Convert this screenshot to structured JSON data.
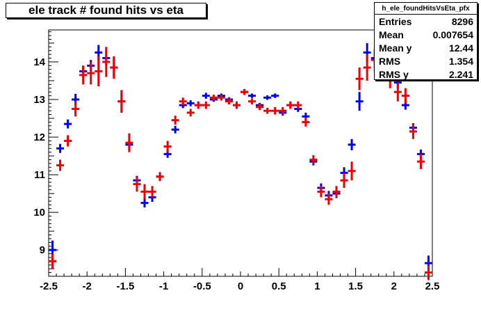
{
  "title": "ele track # found hits vs eta",
  "stats": {
    "name": "h_ele_foundHitsVsEta_pfx",
    "rows": [
      {
        "label": "Entries",
        "value": "8296"
      },
      {
        "label": "Mean",
        "value": "0.007654"
      },
      {
        "label": "Mean y",
        "value": "12.44"
      },
      {
        "label": "RMS",
        "value": "1.354"
      },
      {
        "label": "RMS y",
        "value": "2.241"
      }
    ]
  },
  "chart_data": {
    "type": "scatter",
    "title": "ele track # found hits vs eta",
    "xlabel": "",
    "ylabel": "",
    "xlim": [
      -2.5,
      2.5
    ],
    "ylim": [
      8.3,
      14.85
    ],
    "xticks": [
      -2.5,
      -2,
      -1.5,
      -1,
      -0.5,
      0,
      0.5,
      1,
      1.5,
      2,
      2.5
    ],
    "xtick_labels": [
      "-2.5",
      "-2",
      "-1.5",
      "-1",
      "-0.5",
      "0",
      "0.5",
      "1",
      "1.5",
      "2",
      "2.5"
    ],
    "yticks": [
      9,
      10,
      11,
      12,
      13,
      14
    ],
    "ytick_labels": [
      "9",
      "10",
      "11",
      "12",
      "13",
      "14"
    ],
    "grid": false,
    "colors": {
      "blue": "#0000ee",
      "red": "#ee0000"
    },
    "series": [
      {
        "color": "blue",
        "x": [
          -2.45,
          -2.35,
          -2.25,
          -2.15,
          -2.05,
          -1.95,
          -1.85,
          -1.75,
          -1.65,
          -1.55,
          -1.45,
          -1.35,
          -1.25,
          -1.15,
          -1.05,
          -0.95,
          -0.85,
          -0.75,
          -0.65,
          -0.55,
          -0.45,
          -0.35,
          -0.25,
          -0.15,
          -0.05,
          0.05,
          0.15,
          0.25,
          0.35,
          0.45,
          0.55,
          0.65,
          0.75,
          0.85,
          0.95,
          1.05,
          1.15,
          1.25,
          1.35,
          1.45,
          1.55,
          1.65,
          1.75,
          1.85,
          1.95,
          2.05,
          2.15,
          2.25,
          2.35,
          2.45
        ],
        "y": [
          9.0,
          11.7,
          12.35,
          13.0,
          13.75,
          13.9,
          14.25,
          14.1,
          13.85,
          12.95,
          11.8,
          10.85,
          10.25,
          10.4,
          10.95,
          11.55,
          12.2,
          12.85,
          12.9,
          12.85,
          13.1,
          13.0,
          13.1,
          13.0,
          12.85,
          13.2,
          13.1,
          12.85,
          13.05,
          13.1,
          12.65,
          12.85,
          12.75,
          12.55,
          11.35,
          10.65,
          10.45,
          10.5,
          11.05,
          11.8,
          12.95,
          14.25,
          14.1,
          14.1,
          13.75,
          13.45,
          12.85,
          12.25,
          11.55,
          8.65
        ],
        "yerr": [
          0.25,
          0.12,
          0.12,
          0.15,
          0.15,
          0.15,
          0.2,
          0.2,
          0.25,
          0.3,
          0.15,
          0.12,
          0.12,
          0.12,
          0.1,
          0.1,
          0.1,
          0.08,
          0.08,
          0.08,
          0.08,
          0.06,
          0.06,
          0.06,
          0.08,
          0.06,
          0.06,
          0.06,
          0.06,
          0.06,
          0.08,
          0.08,
          0.08,
          0.1,
          0.1,
          0.12,
          0.12,
          0.12,
          0.15,
          0.15,
          0.25,
          0.25,
          0.2,
          0.2,
          0.2,
          0.15,
          0.12,
          0.12,
          0.12,
          0.2
        ]
      },
      {
        "color": "red",
        "x": [
          -2.45,
          -2.35,
          -2.25,
          -2.15,
          -2.05,
          -1.95,
          -1.85,
          -1.75,
          -1.65,
          -1.55,
          -1.45,
          -1.35,
          -1.25,
          -1.15,
          -1.05,
          -0.95,
          -0.85,
          -0.75,
          -0.65,
          -0.55,
          -0.45,
          -0.35,
          -0.25,
          -0.15,
          -0.05,
          0.05,
          0.15,
          0.25,
          0.35,
          0.45,
          0.55,
          0.65,
          0.75,
          0.85,
          0.95,
          1.05,
          1.15,
          1.25,
          1.35,
          1.45,
          1.55,
          1.65,
          1.75,
          1.85,
          1.95,
          2.05,
          2.15,
          2.25,
          2.35,
          2.45
        ],
        "y": [
          8.7,
          11.25,
          11.9,
          12.75,
          13.65,
          13.7,
          13.75,
          14.0,
          13.85,
          12.95,
          11.85,
          10.75,
          10.55,
          10.55,
          10.95,
          11.75,
          12.45,
          12.95,
          12.65,
          12.85,
          12.85,
          13.05,
          13.05,
          12.95,
          12.85,
          13.2,
          12.95,
          12.8,
          12.7,
          12.7,
          12.7,
          12.85,
          12.85,
          12.4,
          11.4,
          10.55,
          10.35,
          10.55,
          10.85,
          11.1,
          13.55,
          13.85,
          14.05,
          13.85,
          13.55,
          13.2,
          13.1,
          12.15,
          11.35,
          8.4
        ],
        "yerr": [
          0.2,
          0.15,
          0.15,
          0.2,
          0.25,
          0.3,
          0.4,
          0.4,
          0.3,
          0.3,
          0.25,
          0.2,
          0.2,
          0.15,
          0.12,
          0.15,
          0.12,
          0.1,
          0.1,
          0.1,
          0.1,
          0.08,
          0.08,
          0.08,
          0.1,
          0.08,
          0.08,
          0.08,
          0.08,
          0.1,
          0.1,
          0.1,
          0.1,
          0.12,
          0.12,
          0.15,
          0.15,
          0.15,
          0.2,
          0.25,
          0.3,
          0.35,
          0.3,
          0.3,
          0.25,
          0.25,
          0.2,
          0.2,
          0.2,
          0.2
        ]
      }
    ]
  }
}
